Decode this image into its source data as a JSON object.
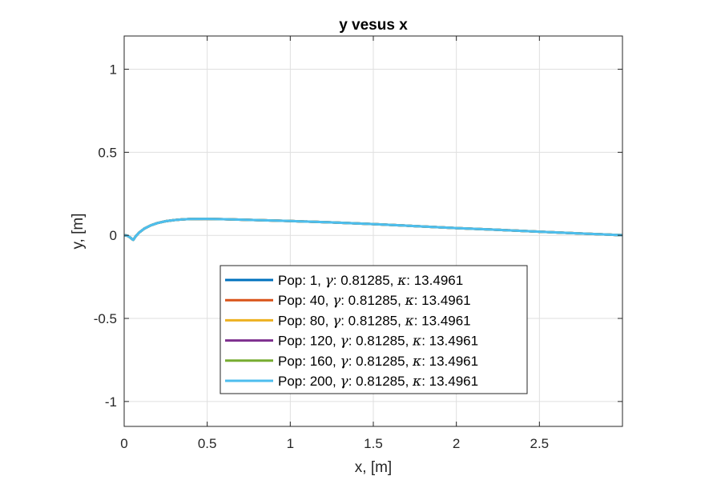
{
  "chart_data": {
    "type": "line",
    "title": "y vesus x",
    "xlabel": "x, [m]",
    "ylabel": "y, [m]",
    "xlim": [
      0,
      3
    ],
    "ylim": [
      -1.15,
      1.2
    ],
    "xticks": [
      0,
      0.5,
      1,
      1.5,
      2,
      2.5
    ],
    "xtick_labels": [
      "0",
      "0.5",
      "1",
      "1.5",
      "2",
      "2.5"
    ],
    "yticks": [
      -1,
      -0.5,
      0,
      0.5,
      1
    ],
    "ytick_labels": [
      "-1",
      "-0.5",
      "0",
      "0.5",
      "1"
    ],
    "grid": true,
    "legend_position": "lower-center",
    "series": [
      {
        "name": "Pop: 1, γ: 0.81285, κ: 13.4961",
        "label": {
          "pop": "Pop: 1, ",
          "gamma": ": 0.81285, ",
          "kappa": ": 13.4961"
        },
        "color": "#0072BD"
      },
      {
        "name": "Pop: 40, γ: 0.81285, κ: 13.4961",
        "label": {
          "pop": "Pop: 40, ",
          "gamma": ": 0.81285, ",
          "kappa": ": 13.4961"
        },
        "color": "#D95319"
      },
      {
        "name": "Pop: 80, γ: 0.81285, κ: 13.4961",
        "label": {
          "pop": "Pop: 80, ",
          "gamma": ": 0.81285, ",
          "kappa": ": 13.4961"
        },
        "color": "#EDB120"
      },
      {
        "name": "Pop: 120, γ: 0.81285, κ: 13.4961",
        "label": {
          "pop": "Pop: 120, ",
          "gamma": ": 0.81285, ",
          "kappa": ": 13.4961"
        },
        "color": "#7E2F8E"
      },
      {
        "name": "Pop: 160, γ: 0.81285, κ: 13.4961",
        "label": {
          "pop": "Pop: 160, ",
          "gamma": ": 0.81285, ",
          "kappa": ": 13.4961"
        },
        "color": "#77AC30"
      },
      {
        "name": "Pop: 200, γ: 0.81285, κ: 13.4961",
        "label": {
          "pop": "Pop: 200, ",
          "gamma": ": 0.81285, ",
          "kappa": ": 13.4961"
        },
        "color": "#4DBEEE"
      }
    ],
    "curve": {
      "x": [
        0,
        0.01,
        0.02,
        0.03,
        0.04,
        0.05,
        0.055,
        0.06,
        0.07,
        0.09,
        0.12,
        0.16,
        0.2,
        0.25,
        0.3,
        0.35,
        0.4,
        0.5,
        0.6,
        0.8,
        1.0,
        1.25,
        1.5,
        1.75,
        2.0,
        2.25,
        2.5,
        2.75,
        3.0
      ],
      "y": [
        0,
        0,
        -0.003,
        -0.008,
        -0.016,
        -0.025,
        -0.027,
        -0.02,
        -0.005,
        0.017,
        0.04,
        0.06,
        0.074,
        0.085,
        0.092,
        0.096,
        0.098,
        0.099,
        0.097,
        0.092,
        0.086,
        0.078,
        0.068,
        0.056,
        0.044,
        0.033,
        0.022,
        0.011,
        0.001
      ]
    }
  }
}
